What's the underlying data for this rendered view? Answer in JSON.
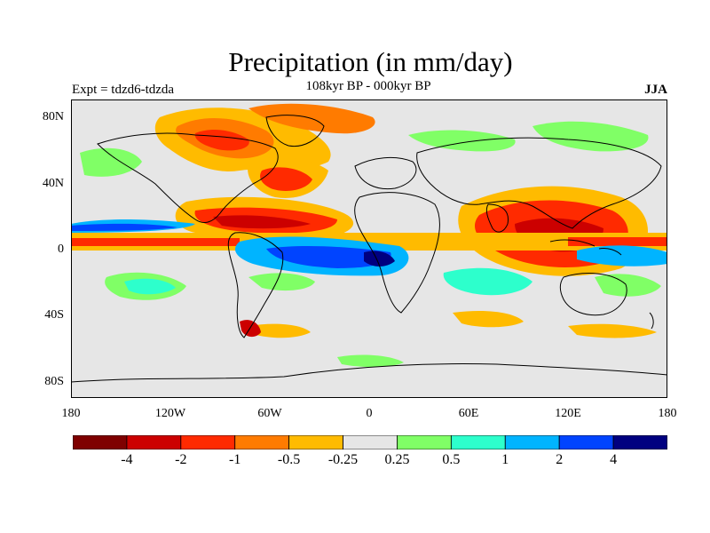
{
  "title": "Precipitation (in mm/day)",
  "subtitle": "108kyr BP - 000kyr BP",
  "experiment": "Expt = tdzd6-tdzda",
  "season": "JJA",
  "lat_labels": [
    "80N",
    "40N",
    "0",
    "40S",
    "80S"
  ],
  "lon_labels": [
    "180",
    "120W",
    "60W",
    "0",
    "60E",
    "120E",
    "180"
  ],
  "colorbar": {
    "colors": [
      "#7f0000",
      "#cc0000",
      "#ff2a00",
      "#ff7b00",
      "#ffbb00",
      "#e6e6e6",
      "#80ff66",
      "#2dffcc",
      "#00b4ff",
      "#0044ff",
      "#000080"
    ],
    "labels": [
      "-4",
      "-2",
      "-1",
      "-0.5",
      "-0.25",
      "0.25",
      "0.5",
      "1",
      "2",
      "4"
    ]
  },
  "colors": {
    "background": "#e6e6e6",
    "coast": "#000000"
  }
}
